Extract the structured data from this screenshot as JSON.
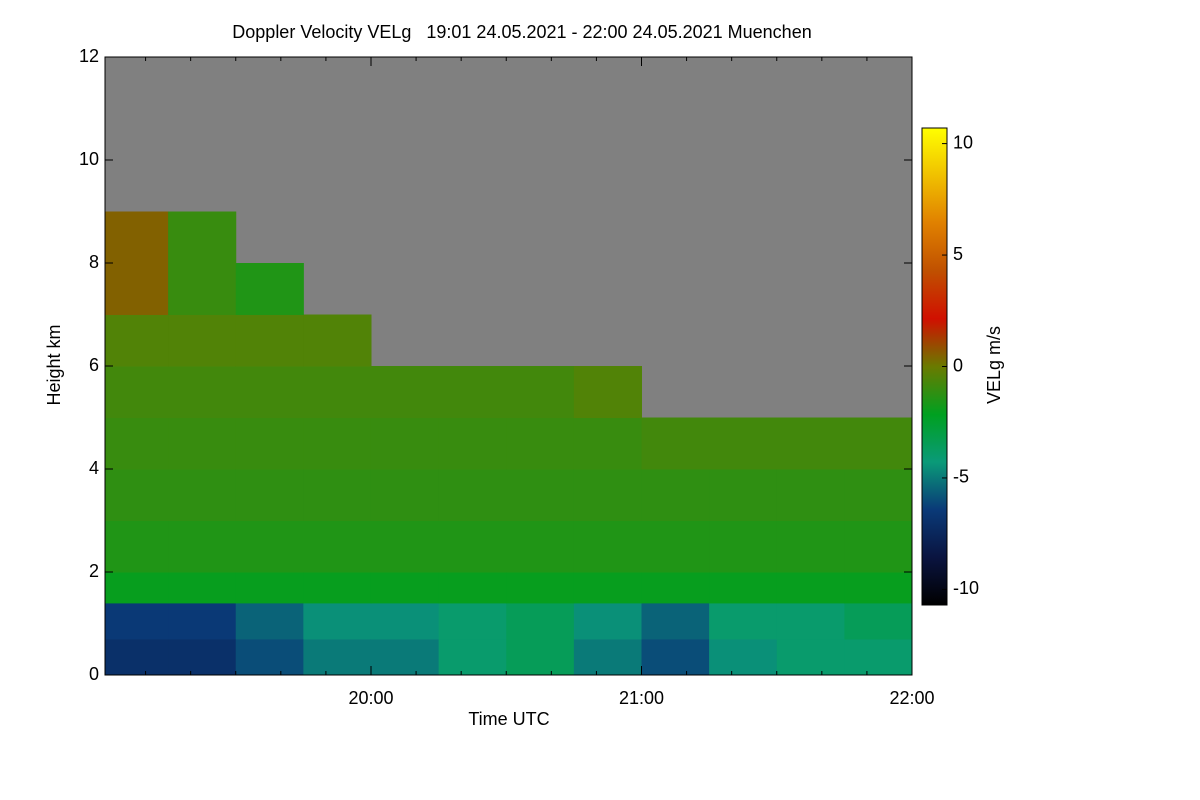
{
  "chart_data": {
    "type": "heatmap",
    "title": "Doppler Velocity VELg   19:01 24.05.2021 - 22:00 24.05.2021 Muenchen",
    "x_label": "Time UTC",
    "y_label": "Height km",
    "colorbar_label": "VELg m/s",
    "xlim": [
      "19:01",
      "22:00"
    ],
    "xticks": [
      "20:00",
      "21:00",
      "22:00"
    ],
    "ylim": [
      0,
      12
    ],
    "yticks": [
      0,
      2,
      4,
      6,
      8,
      10,
      12
    ],
    "clim": [
      -10.7,
      10.7
    ],
    "cticks": [
      -10,
      -5,
      0,
      5,
      10
    ],
    "colormap": [
      "#000000",
      "#0a1440",
      "#0a3a78",
      "#0a9a78",
      "#00a020",
      "#6a7a00",
      "#d01000",
      "#c05000",
      "#e08000",
      "#f0c000",
      "#ffff00"
    ],
    "no_data_color": "#808080",
    "x_bins": [
      "19:01",
      "19:15",
      "19:30",
      "19:45",
      "20:00",
      "20:15",
      "20:30",
      "20:45",
      "21:00",
      "21:15",
      "21:30",
      "21:45",
      "22:00"
    ],
    "y_bins": [
      0,
      0.7,
      1.4,
      2,
      3,
      4,
      5,
      6,
      7,
      8,
      9
    ],
    "z": [
      [
        -7,
        -7,
        -6,
        -5,
        -5,
        -4,
        -3.5,
        -5,
        -6,
        -4.5,
        -4,
        -4
      ],
      [
        -6.5,
        -6.5,
        -5.5,
        -4.5,
        -4.5,
        -4,
        -3.5,
        -4.5,
        -5.5,
        -4,
        -4,
        -3.5
      ],
      [
        -2,
        -2,
        -2,
        -2,
        -2,
        -2,
        -2,
        -2,
        -2,
        -2,
        -2,
        -2
      ],
      [
        -1.5,
        -1.5,
        -1.5,
        -1.5,
        -1.5,
        -1.5,
        -1.5,
        -1.5,
        -1.5,
        -1.5,
        -1.5,
        -1.5
      ],
      [
        -1.2,
        -1.2,
        -1.2,
        -1.2,
        -1.2,
        -1.2,
        -1.2,
        -1.2,
        -1.2,
        -1.2,
        -1.2,
        -1.2
      ],
      [
        -1,
        -1,
        -1,
        -1,
        -1,
        -1,
        -1,
        -1,
        -0.8,
        -0.8,
        -0.8,
        -0.8
      ],
      [
        -0.8,
        -0.8,
        -0.8,
        -0.8,
        -0.8,
        -0.8,
        -0.8,
        -0.5,
        null,
        null,
        null,
        null
      ],
      [
        -0.5,
        -0.5,
        -0.5,
        -0.5,
        null,
        null,
        null,
        null,
        null,
        null,
        null,
        null
      ],
      [
        0.5,
        -1,
        -1.5,
        null,
        null,
        null,
        null,
        null,
        null,
        null,
        null,
        null
      ],
      [
        0.5,
        -1,
        null,
        null,
        null,
        null,
        null,
        null,
        null,
        null,
        null,
        null
      ]
    ]
  }
}
